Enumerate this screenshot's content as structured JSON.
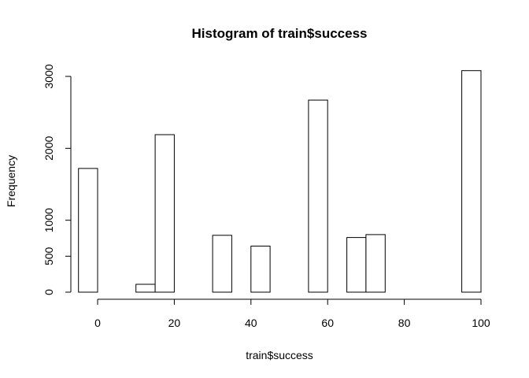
{
  "chart_data": {
    "type": "histogram",
    "title": "Histogram of train$success",
    "xlabel": "train$success",
    "ylabel": "Frequency",
    "bin_width": 5,
    "bins": [
      {
        "start": -5,
        "end": 0,
        "count": 1720
      },
      {
        "start": 0,
        "end": 5,
        "count": 0
      },
      {
        "start": 5,
        "end": 10,
        "count": 0
      },
      {
        "start": 10,
        "end": 15,
        "count": 110
      },
      {
        "start": 15,
        "end": 20,
        "count": 2190
      },
      {
        "start": 20,
        "end": 25,
        "count": 0
      },
      {
        "start": 25,
        "end": 30,
        "count": 0
      },
      {
        "start": 30,
        "end": 35,
        "count": 790
      },
      {
        "start": 35,
        "end": 40,
        "count": 0
      },
      {
        "start": 40,
        "end": 45,
        "count": 640
      },
      {
        "start": 45,
        "end": 50,
        "count": 0
      },
      {
        "start": 50,
        "end": 55,
        "count": 0
      },
      {
        "start": 55,
        "end": 60,
        "count": 2670
      },
      {
        "start": 60,
        "end": 65,
        "count": 0
      },
      {
        "start": 65,
        "end": 70,
        "count": 760
      },
      {
        "start": 70,
        "end": 75,
        "count": 800
      },
      {
        "start": 75,
        "end": 80,
        "count": 0
      },
      {
        "start": 80,
        "end": 85,
        "count": 0
      },
      {
        "start": 85,
        "end": 90,
        "count": 0
      },
      {
        "start": 90,
        "end": 95,
        "count": 0
      },
      {
        "start": 95,
        "end": 100,
        "count": 3080
      }
    ],
    "x_ticks": [
      0,
      20,
      40,
      60,
      80,
      100
    ],
    "x_tick_labels": [
      "0",
      "20",
      "40",
      "60",
      "80",
      "100"
    ],
    "y_ticks": [
      0,
      500,
      1000,
      2000,
      3000
    ],
    "y_tick_labels": [
      "0",
      "500",
      "1000",
      "2000",
      "3000"
    ],
    "xlim": [
      -5,
      100
    ],
    "ylim": [
      0,
      3080
    ],
    "grid": false,
    "legend": "none"
  }
}
